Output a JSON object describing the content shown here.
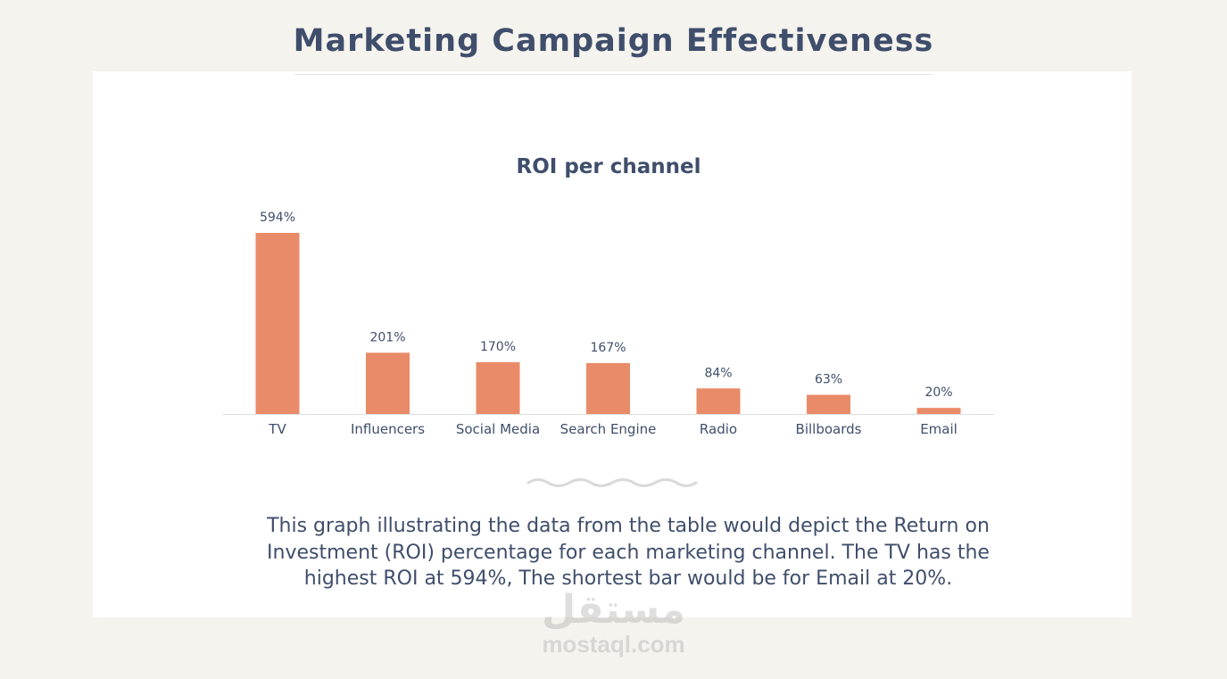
{
  "page_title": "Marketing Campaign Effectiveness",
  "colors": {
    "background": "#f5f3ee",
    "card": "#ffffff",
    "bar": "#e98b69",
    "text": "#3f4e6b",
    "axis": "#e0e0e0"
  },
  "chart_data": {
    "type": "bar",
    "title": "ROI per channel",
    "categories": [
      "TV",
      "Influencers",
      "Social Media",
      "Search Engine",
      "Radio",
      "Billboards",
      "Email"
    ],
    "values": [
      594,
      201,
      170,
      167,
      84,
      63,
      20
    ],
    "value_labels": [
      "594%",
      "201%",
      "170%",
      "167%",
      "84%",
      "63%",
      "20%"
    ],
    "ylim": [
      0,
      594
    ],
    "xlabel": "",
    "ylabel": "",
    "grid": false
  },
  "caption": "This graph illustrating the data from the table would depict the Return on Investment (ROI) percentage for each marketing channel. The TV has the highest ROI at 594%, The shortest bar would be for Email at 20%.",
  "watermark": {
    "logo_text": "مستقل",
    "site": "mostaql.com"
  }
}
